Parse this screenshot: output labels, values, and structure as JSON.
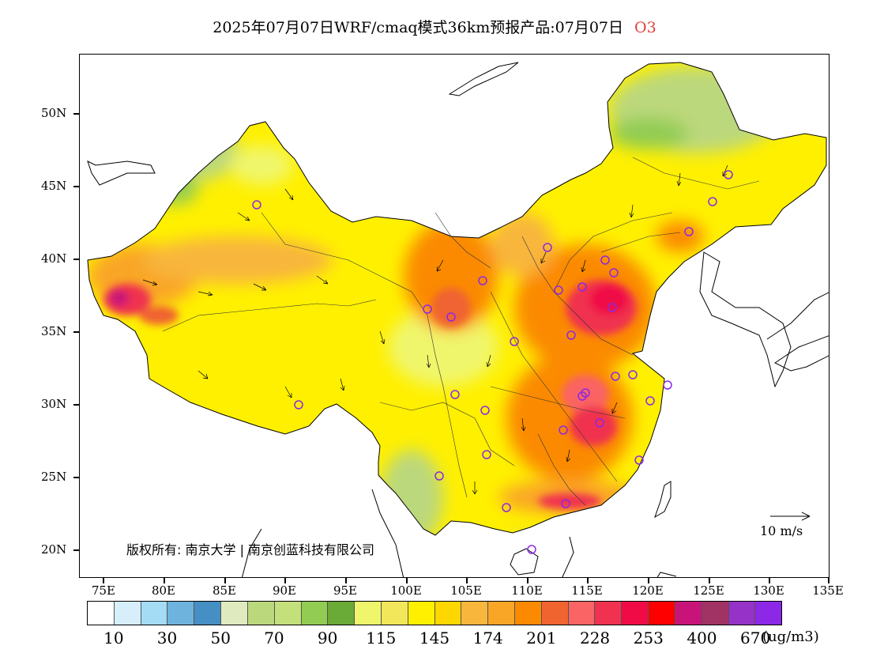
{
  "title": {
    "text": "2025年07月07日WRF/cmaq模式36km预报产品:07月07日",
    "pollutant": "O3",
    "pollutant_color": "#e04040"
  },
  "axes": {
    "y_ticks": [
      "50N",
      "45N",
      "40N",
      "35N",
      "30N",
      "25N",
      "20N"
    ],
    "x_ticks": [
      "75E",
      "80E",
      "85E",
      "90E",
      "95E",
      "100E",
      "105E",
      "110E",
      "115E",
      "120E",
      "125E",
      "130E",
      "135E"
    ]
  },
  "legend": {
    "colors": [
      "#ffffff",
      "#d6effa",
      "#a3dcf4",
      "#6eb2de",
      "#468fc4",
      "#dfebbf",
      "#bcd87c",
      "#c4e07a",
      "#92cc52",
      "#6aaa36",
      "#f0f66c",
      "#f2e65a",
      "#fff000",
      "#ffd700",
      "#f8b63c",
      "#f9a626",
      "#fb8a00",
      "#f06430",
      "#fa6464",
      "#f03250",
      "#f00a46",
      "#ff0000",
      "#c81478",
      "#a03264",
      "#9632c8",
      "#8c28e6"
    ],
    "labels": [
      "10",
      "30",
      "50",
      "70",
      "90",
      "115",
      "145",
      "174",
      "201",
      "228",
      "253",
      "400",
      "670"
    ],
    "unit": "(ug/m3)"
  },
  "copyright": "版权所有: 南京大学 | 南京创蓝科技有限公司",
  "wind_reference": {
    "label": "10  m/s"
  }
}
